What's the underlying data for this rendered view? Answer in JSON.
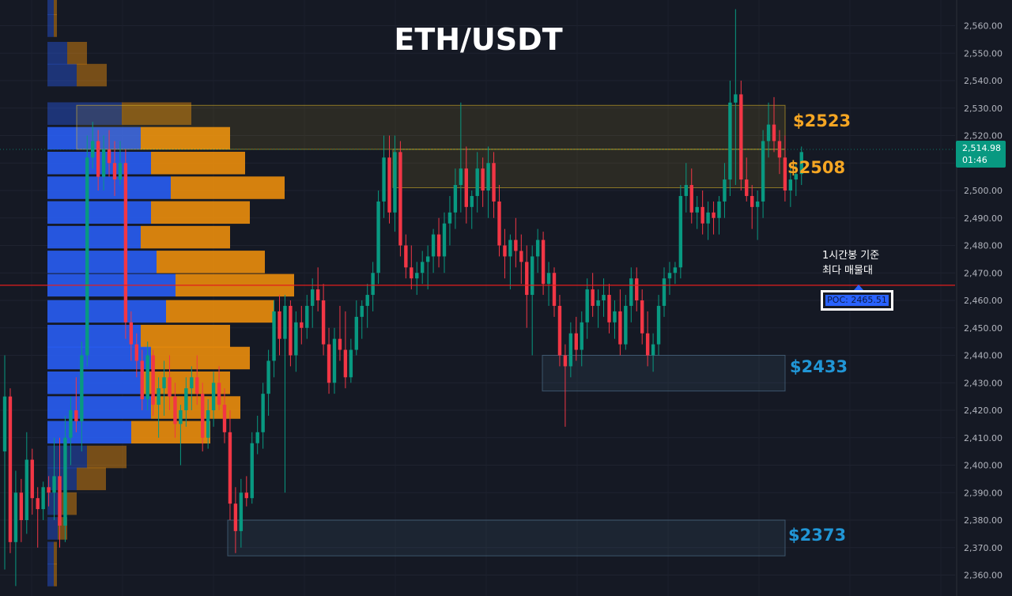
{
  "title": "ETH/USDT",
  "annotation": {
    "line1": "1시간봉 기준",
    "line2": "최다 매물대"
  },
  "poc_label": "POC: 2465.51",
  "current_price": {
    "price": "2,514.98",
    "countdown": "01:46"
  },
  "colors": {
    "background": "#151924",
    "up": "#089981",
    "down": "#f23645",
    "volume_up": "#2962ff",
    "volume_down": "#f0900b",
    "poc_line": "#e21d1d",
    "resistance_label": "#f5a623",
    "support_label": "#2196d6"
  },
  "chart_data": {
    "type": "candlestick",
    "title": "ETH/USDT",
    "ylim": [
      2355,
      2575
    ],
    "y_ticks": [
      "2,360.00",
      "2,370.00",
      "2,380.00",
      "2,390.00",
      "2,400.00",
      "2,410.00",
      "2,420.00",
      "2,430.00",
      "2,440.00",
      "2,450.00",
      "2,460.00",
      "2,470.00",
      "2,480.00",
      "2,490.00",
      "2,500.00",
      "2,510.00",
      "2,520.00",
      "2,530.00",
      "2,540.00",
      "2,550.00",
      "2,560.00"
    ],
    "candles": [
      [
        2405,
        2440,
        2362,
        2425
      ],
      [
        2425,
        2428,
        2368,
        2372
      ],
      [
        2372,
        2398,
        2356,
        2390
      ],
      [
        2390,
        2395,
        2372,
        2380
      ],
      [
        2380,
        2412,
        2375,
        2402
      ],
      [
        2402,
        2406,
        2382,
        2388
      ],
      [
        2388,
        2392,
        2370,
        2384
      ],
      [
        2384,
        2394,
        2380,
        2392
      ],
      [
        2392,
        2396,
        2385,
        2390
      ],
      [
        2390,
        2410,
        2380,
        2396
      ],
      [
        2396,
        2410,
        2370,
        2378
      ],
      [
        2378,
        2418,
        2372,
        2410
      ],
      [
        2410,
        2425,
        2400,
        2420
      ],
      [
        2420,
        2432,
        2412,
        2416
      ],
      [
        2416,
        2445,
        2405,
        2440
      ],
      [
        2440,
        2520,
        2436,
        2512
      ],
      [
        2512,
        2525,
        2508,
        2518
      ],
      [
        2518,
        2522,
        2500,
        2505
      ],
      [
        2505,
        2520,
        2500,
        2515
      ],
      [
        2515,
        2522,
        2505,
        2510
      ],
      [
        2510,
        2518,
        2498,
        2504
      ],
      [
        2504,
        2518,
        2502,
        2510
      ],
      [
        2510,
        2515,
        2446,
        2452
      ],
      [
        2452,
        2456,
        2438,
        2444
      ],
      [
        2444,
        2448,
        2432,
        2438
      ],
      [
        2438,
        2442,
        2420,
        2424
      ],
      [
        2424,
        2445,
        2420,
        2440
      ],
      [
        2440,
        2442,
        2418,
        2422
      ],
      [
        2422,
        2432,
        2410,
        2428
      ],
      [
        2428,
        2438,
        2418,
        2432
      ],
      [
        2432,
        2440,
        2420,
        2425
      ],
      [
        2425,
        2430,
        2410,
        2415
      ],
      [
        2415,
        2422,
        2400,
        2420
      ],
      [
        2420,
        2432,
        2414,
        2428
      ],
      [
        2428,
        2436,
        2420,
        2432
      ],
      [
        2432,
        2440,
        2422,
        2426
      ],
      [
        2426,
        2430,
        2405,
        2410
      ],
      [
        2410,
        2424,
        2406,
        2420
      ],
      [
        2420,
        2434,
        2414,
        2430
      ],
      [
        2430,
        2436,
        2420,
        2422
      ],
      [
        2422,
        2428,
        2408,
        2412
      ],
      [
        2412,
        2420,
        2380,
        2386
      ],
      [
        2386,
        2392,
        2368,
        2376
      ],
      [
        2376,
        2395,
        2370,
        2390
      ],
      [
        2390,
        2396,
        2385,
        2388
      ],
      [
        2388,
        2412,
        2386,
        2408
      ],
      [
        2408,
        2418,
        2404,
        2412
      ],
      [
        2412,
        2430,
        2406,
        2426
      ],
      [
        2426,
        2442,
        2418,
        2438
      ],
      [
        2438,
        2460,
        2432,
        2456
      ],
      [
        2456,
        2462,
        2440,
        2446
      ],
      [
        2446,
        2462,
        2390,
        2458
      ],
      [
        2458,
        2460,
        2436,
        2440
      ],
      [
        2440,
        2456,
        2434,
        2452
      ],
      [
        2452,
        2458,
        2444,
        2450
      ],
      [
        2450,
        2462,
        2446,
        2458
      ],
      [
        2458,
        2468,
        2450,
        2464
      ],
      [
        2464,
        2472,
        2456,
        2460
      ],
      [
        2460,
        2466,
        2440,
        2444
      ],
      [
        2444,
        2450,
        2426,
        2430
      ],
      [
        2430,
        2450,
        2426,
        2446
      ],
      [
        2446,
        2458,
        2438,
        2442
      ],
      [
        2442,
        2456,
        2428,
        2432
      ],
      [
        2432,
        2446,
        2430,
        2442
      ],
      [
        2442,
        2460,
        2440,
        2454
      ],
      [
        2454,
        2460,
        2446,
        2458
      ],
      [
        2458,
        2466,
        2450,
        2462
      ],
      [
        2462,
        2474,
        2456,
        2470
      ],
      [
        2470,
        2500,
        2466,
        2496
      ],
      [
        2496,
        2520,
        2490,
        2512
      ],
      [
        2512,
        2520,
        2488,
        2492
      ],
      [
        2492,
        2520,
        2485,
        2514
      ],
      [
        2514,
        2518,
        2476,
        2480
      ],
      [
        2480,
        2484,
        2468,
        2472
      ],
      [
        2472,
        2480,
        2464,
        2468
      ],
      [
        2468,
        2474,
        2462,
        2470
      ],
      [
        2470,
        2478,
        2466,
        2474
      ],
      [
        2474,
        2480,
        2464,
        2476
      ],
      [
        2476,
        2486,
        2470,
        2484
      ],
      [
        2484,
        2490,
        2472,
        2476
      ],
      [
        2476,
        2492,
        2470,
        2488
      ],
      [
        2488,
        2498,
        2480,
        2492
      ],
      [
        2492,
        2508,
        2486,
        2502
      ],
      [
        2502,
        2532,
        2492,
        2508
      ],
      [
        2508,
        2516,
        2488,
        2494
      ],
      [
        2494,
        2500,
        2486,
        2498
      ],
      [
        2498,
        2514,
        2492,
        2508
      ],
      [
        2508,
        2512,
        2494,
        2500
      ],
      [
        2500,
        2516,
        2490,
        2510
      ],
      [
        2510,
        2514,
        2490,
        2496
      ],
      [
        2496,
        2502,
        2476,
        2480
      ],
      [
        2480,
        2486,
        2468,
        2476
      ],
      [
        2476,
        2484,
        2464,
        2482
      ],
      [
        2482,
        2490,
        2472,
        2478
      ],
      [
        2478,
        2484,
        2466,
        2474
      ],
      [
        2474,
        2480,
        2450,
        2462
      ],
      [
        2462,
        2480,
        2440,
        2476
      ],
      [
        2476,
        2486,
        2470,
        2482
      ],
      [
        2482,
        2485,
        2462,
        2466
      ],
      [
        2466,
        2474,
        2458,
        2470
      ],
      [
        2470,
        2472,
        2454,
        2458
      ],
      [
        2458,
        2462,
        2436,
        2440
      ],
      [
        2440,
        2444,
        2414,
        2436
      ],
      [
        2436,
        2452,
        2432,
        2448
      ],
      [
        2448,
        2454,
        2438,
        2442
      ],
      [
        2442,
        2456,
        2436,
        2452
      ],
      [
        2452,
        2468,
        2446,
        2464
      ],
      [
        2464,
        2470,
        2454,
        2458
      ],
      [
        2458,
        2464,
        2450,
        2460
      ],
      [
        2460,
        2468,
        2454,
        2462
      ],
      [
        2462,
        2466,
        2448,
        2452
      ],
      [
        2452,
        2460,
        2446,
        2456
      ],
      [
        2456,
        2464,
        2440,
        2444
      ],
      [
        2444,
        2462,
        2442,
        2458
      ],
      [
        2458,
        2472,
        2452,
        2468
      ],
      [
        2468,
        2472,
        2456,
        2460
      ],
      [
        2460,
        2464,
        2444,
        2448
      ],
      [
        2448,
        2456,
        2436,
        2440
      ],
      [
        2440,
        2448,
        2434,
        2444
      ],
      [
        2444,
        2462,
        2440,
        2458
      ],
      [
        2458,
        2472,
        2454,
        2468
      ],
      [
        2468,
        2474,
        2462,
        2470
      ],
      [
        2470,
        2474,
        2466,
        2472
      ],
      [
        2472,
        2502,
        2468,
        2498
      ],
      [
        2498,
        2510,
        2492,
        2502
      ],
      [
        2502,
        2508,
        2488,
        2492
      ],
      [
        2492,
        2498,
        2486,
        2494
      ],
      [
        2494,
        2500,
        2484,
        2488
      ],
      [
        2488,
        2496,
        2482,
        2492
      ],
      [
        2492,
        2496,
        2484,
        2490
      ],
      [
        2490,
        2498,
        2484,
        2496
      ],
      [
        2496,
        2510,
        2490,
        2504
      ],
      [
        2504,
        2540,
        2498,
        2532
      ],
      [
        2532,
        2566,
        2502,
        2535
      ],
      [
        2535,
        2540,
        2500,
        2504
      ],
      [
        2504,
        2512,
        2496,
        2498
      ],
      [
        2498,
        2502,
        2486,
        2494
      ],
      [
        2494,
        2500,
        2482,
        2496
      ],
      [
        2496,
        2522,
        2490,
        2518
      ],
      [
        2518,
        2532,
        2512,
        2524
      ],
      [
        2524,
        2534,
        2514,
        2518
      ],
      [
        2518,
        2522,
        2506,
        2512
      ],
      [
        2512,
        2520,
        2496,
        2500
      ],
      [
        2500,
        2510,
        2494,
        2504
      ],
      [
        2504,
        2510,
        2498,
        2506
      ],
      [
        2506,
        2516,
        2502,
        2514
      ]
    ],
    "volume_profile": {
      "bins": [
        {
          "price": 2568,
          "buy": 8,
          "sell": 4
        },
        {
          "price": 2560,
          "buy": 8,
          "sell": 4
        },
        {
          "price": 2550,
          "buy": 25,
          "sell": 25
        },
        {
          "price": 2542,
          "buy": 37,
          "sell": 38
        },
        {
          "price": 2528,
          "buy": 94,
          "sell": 88
        },
        {
          "price": 2519,
          "buy": 118,
          "sell": 113
        },
        {
          "price": 2510,
          "buy": 131,
          "sell": 119
        },
        {
          "price": 2501,
          "buy": 156,
          "sell": 144
        },
        {
          "price": 2492,
          "buy": 131,
          "sell": 125
        },
        {
          "price": 2483,
          "buy": 118,
          "sell": 113
        },
        {
          "price": 2474,
          "buy": 138,
          "sell": 137
        },
        {
          "price": 2465.51,
          "buy": 162,
          "sell": 150,
          "poc": true
        },
        {
          "price": 2456,
          "buy": 150,
          "sell": 137
        },
        {
          "price": 2447,
          "buy": 118,
          "sell": 113
        },
        {
          "price": 2439,
          "buy": 131,
          "sell": 125
        },
        {
          "price": 2430,
          "buy": 118,
          "sell": 113
        },
        {
          "price": 2421,
          "buy": 131,
          "sell": 113
        },
        {
          "price": 2412,
          "buy": 106,
          "sell": 100
        },
        {
          "price": 2403,
          "buy": 50,
          "sell": 50
        },
        {
          "price": 2395,
          "buy": 37,
          "sell": 37
        },
        {
          "price": 2386,
          "buy": 18,
          "sell": 19
        },
        {
          "price": 2377,
          "buy": 13,
          "sell": 12
        },
        {
          "price": 2368,
          "buy": 8,
          "sell": 4
        },
        {
          "price": 2360,
          "buy": 8,
          "sell": 4
        }
      ]
    },
    "zones": [
      {
        "label": "$2523",
        "top": 2531,
        "bottom": 2515,
        "color": "#f5a623"
      },
      {
        "label": "$2508",
        "top": 2515,
        "bottom": 2501,
        "color": "#f5a623"
      },
      {
        "label": "$2433",
        "top": 2440,
        "bottom": 2427,
        "color": "#2196d6"
      },
      {
        "label": "$2373",
        "top": 2380,
        "bottom": 2367,
        "color": "#2196d6"
      }
    ],
    "poc": 2465.51,
    "current_price": 2514.98,
    "grid": true
  }
}
